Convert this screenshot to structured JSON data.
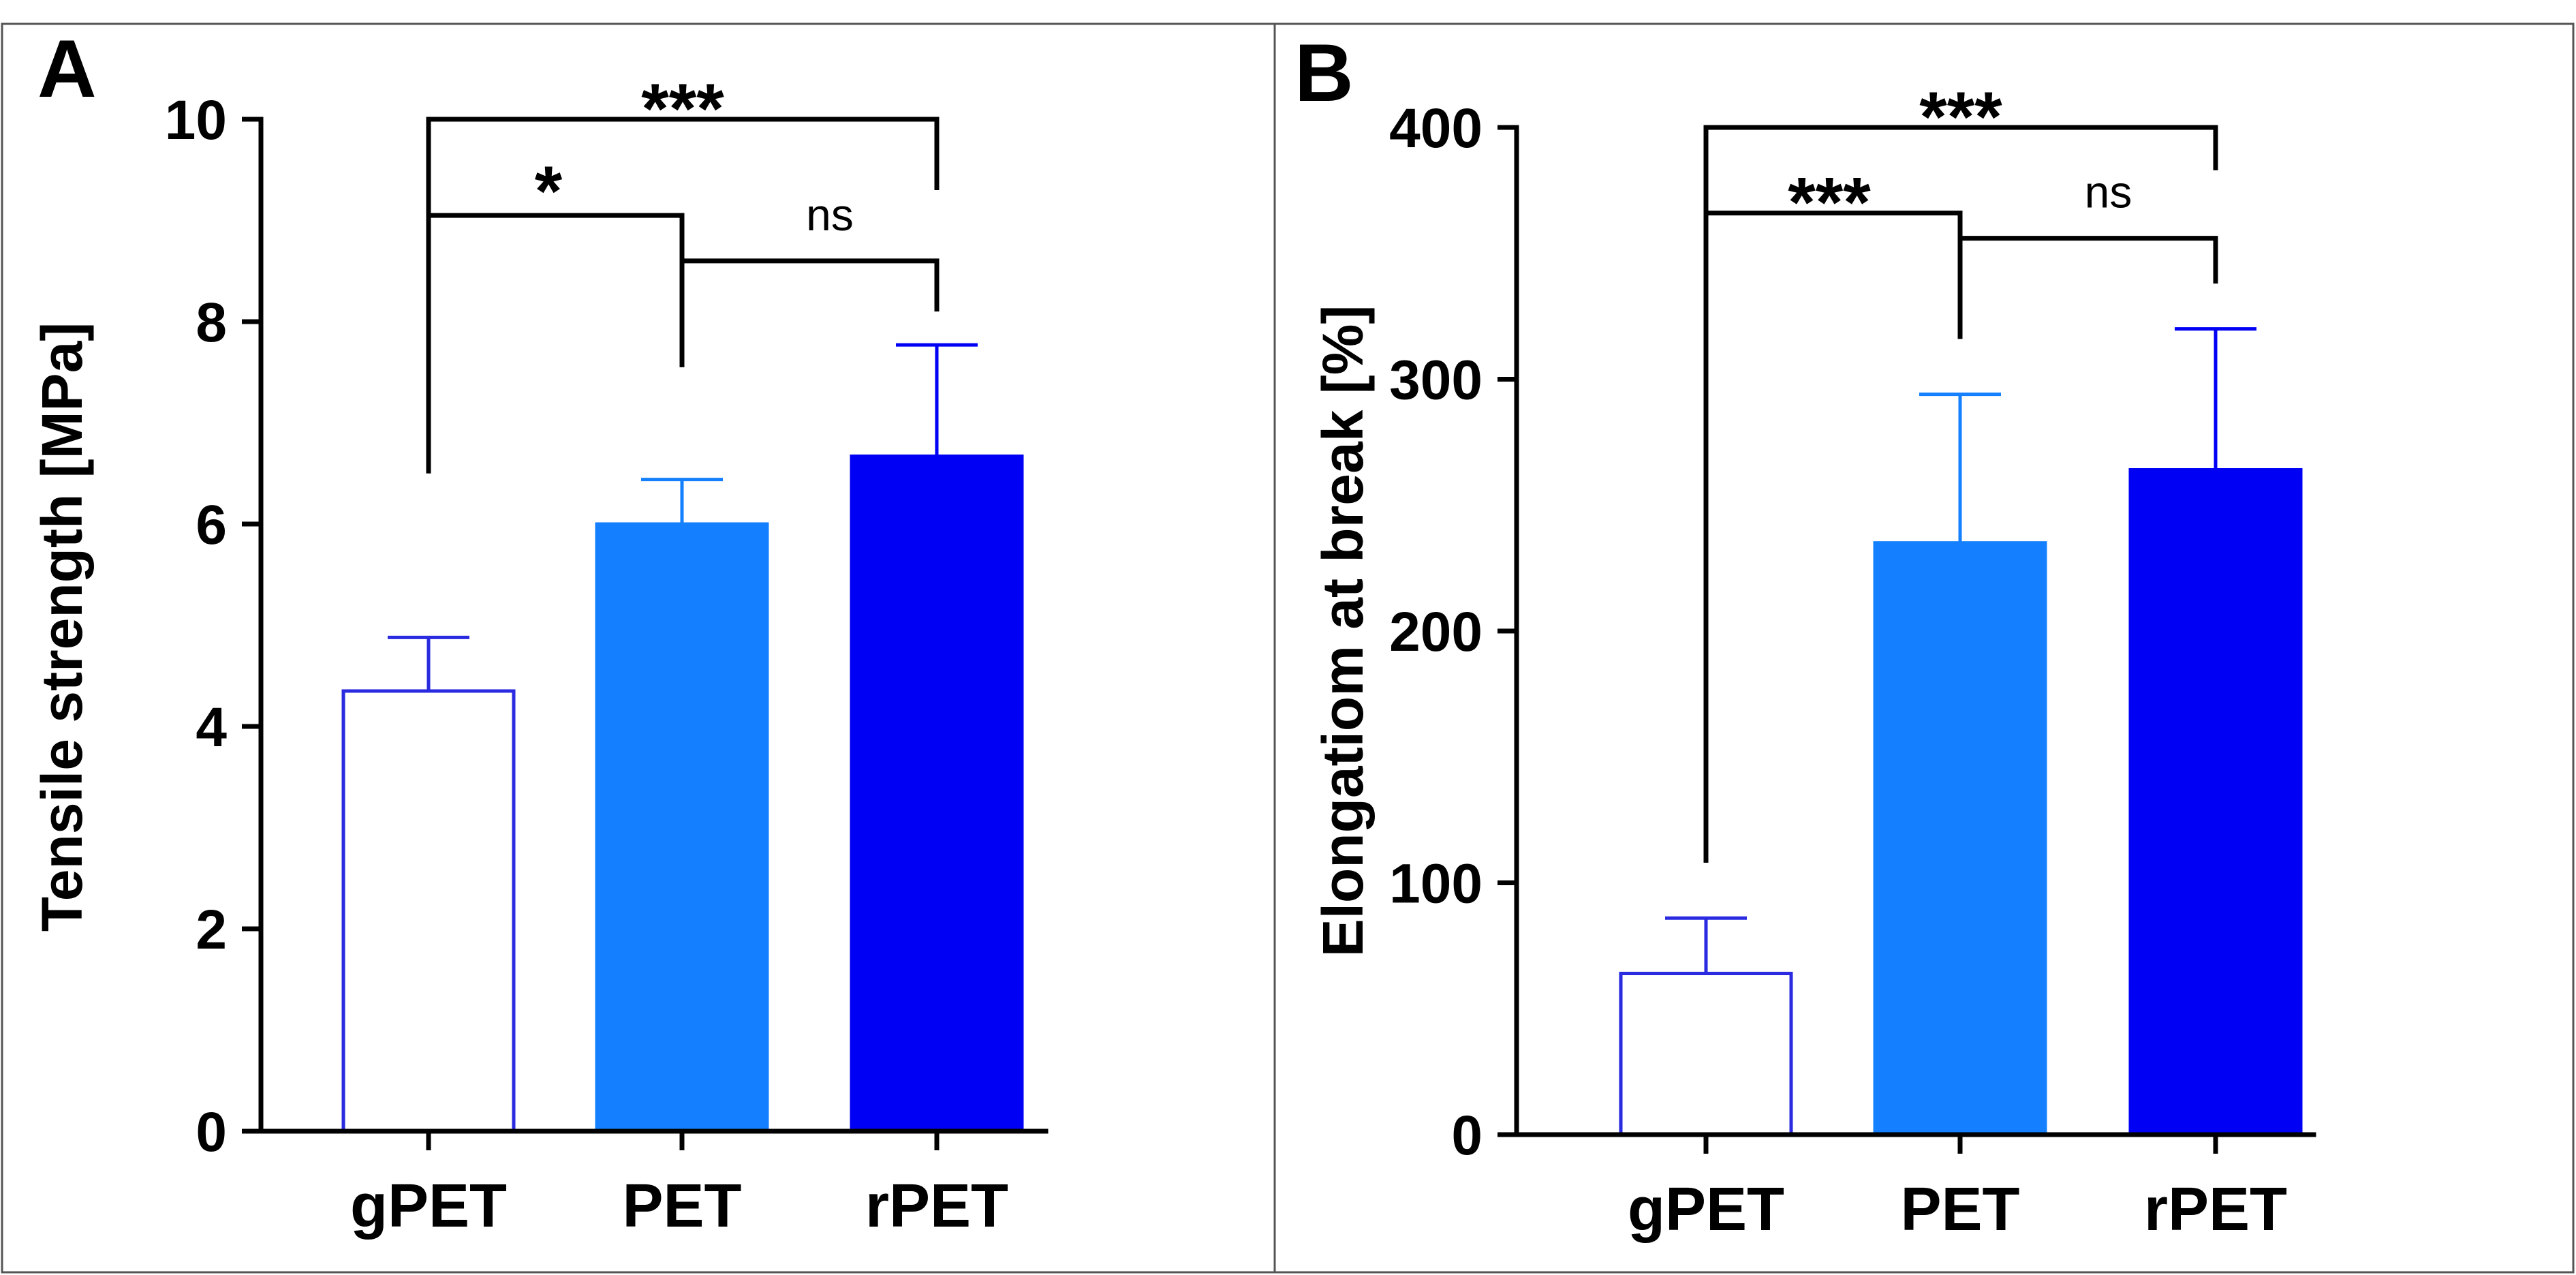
{
  "chart_data": [
    {
      "type": "bar",
      "panel_label": "A",
      "title": "",
      "xlabel": "",
      "ylabel": "Tensile strength [MPa]",
      "categories": [
        "gPET",
        "PET",
        "rPET"
      ],
      "values": [
        4.35,
        6.0,
        6.67
      ],
      "errors": [
        0.53,
        0.44,
        1.1
      ],
      "ylim": [
        0,
        10
      ],
      "yticks": [
        0,
        2,
        4,
        6,
        8,
        10
      ],
      "ytick_labels": [
        "0",
        "2",
        "4",
        "6",
        "8",
        "10"
      ],
      "bar_fills": [
        "#ffffff",
        "#1480ff",
        "#0000f5"
      ],
      "bar_strokes": [
        "#2a2ae0",
        "#1480ff",
        "#0000f5"
      ],
      "grid": false,
      "significance": [
        {
          "from": 0,
          "to": 2,
          "label": "***",
          "level": 10.0
        },
        {
          "from": 0,
          "to": 1,
          "label": "*",
          "level": 9.05
        },
        {
          "from": 1,
          "to": 2,
          "label": "ns",
          "level": 8.6
        }
      ]
    },
    {
      "type": "bar",
      "panel_label": "B",
      "title": "",
      "xlabel": "",
      "ylabel": "Elongatiom at break [%]",
      "categories": [
        "gPET",
        "PET",
        "rPET"
      ],
      "values": [
        64,
        235,
        264
      ],
      "errors": [
        22,
        59,
        56
      ],
      "ylim": [
        0,
        400
      ],
      "yticks": [
        0,
        100,
        200,
        300,
        400
      ],
      "ytick_labels": [
        "0",
        "100",
        "200",
        "300",
        "400"
      ],
      "bar_fills": [
        "#ffffff",
        "#1480ff",
        "#0000f5"
      ],
      "bar_strokes": [
        "#2a2ae0",
        "#1480ff",
        "#0000f5"
      ],
      "grid": false,
      "significance": [
        {
          "from": 0,
          "to": 2,
          "label": "***",
          "level": 400
        },
        {
          "from": 0,
          "to": 1,
          "label": "***",
          "level": 366
        },
        {
          "from": 1,
          "to": 2,
          "label": "ns",
          "level": 356
        }
      ]
    }
  ]
}
